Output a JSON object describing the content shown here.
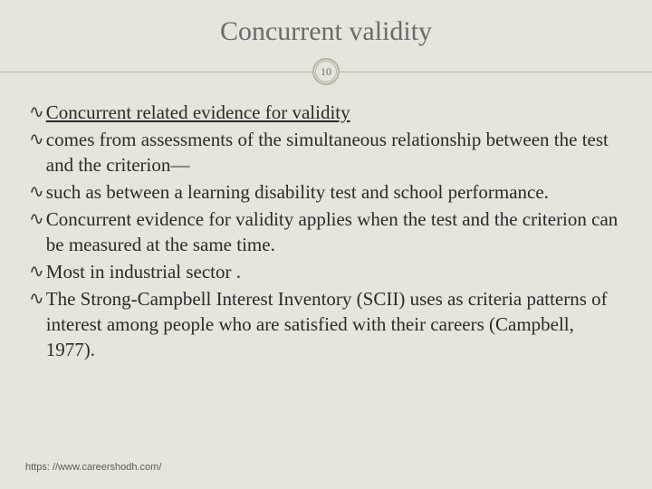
{
  "slide": {
    "title": "Concurrent validity",
    "page_number": "10",
    "background_color": "#e8e4db",
    "title_color": "#6b6b6b",
    "title_fontsize": 30,
    "divider_color": "#b7b2a6",
    "body_color": "#2a2a2a",
    "body_fontsize": 21,
    "bullets": [
      {
        "text": "Concurrent related evidence for validity",
        "underline": true
      },
      {
        "text": "comes from assessments of the simultaneous relationship between the test and the criterion—",
        "underline": false
      },
      {
        "text": "such as between a learning disability test and school performance.",
        "underline": false
      },
      {
        "text": "Concurrent evidence for validity applies when the test and the criterion can be measured at the same time.",
        "underline": false
      },
      {
        "text": "Most in industrial sector .",
        "underline": false
      },
      {
        "text": "The Strong-Campbell Interest Inventory (SCII) uses as criteria patterns of interest among people who are satisfied with their careers (Campbell, 1977).",
        "underline": false
      }
    ],
    "footer": "https: //www.careershodh.com/"
  }
}
